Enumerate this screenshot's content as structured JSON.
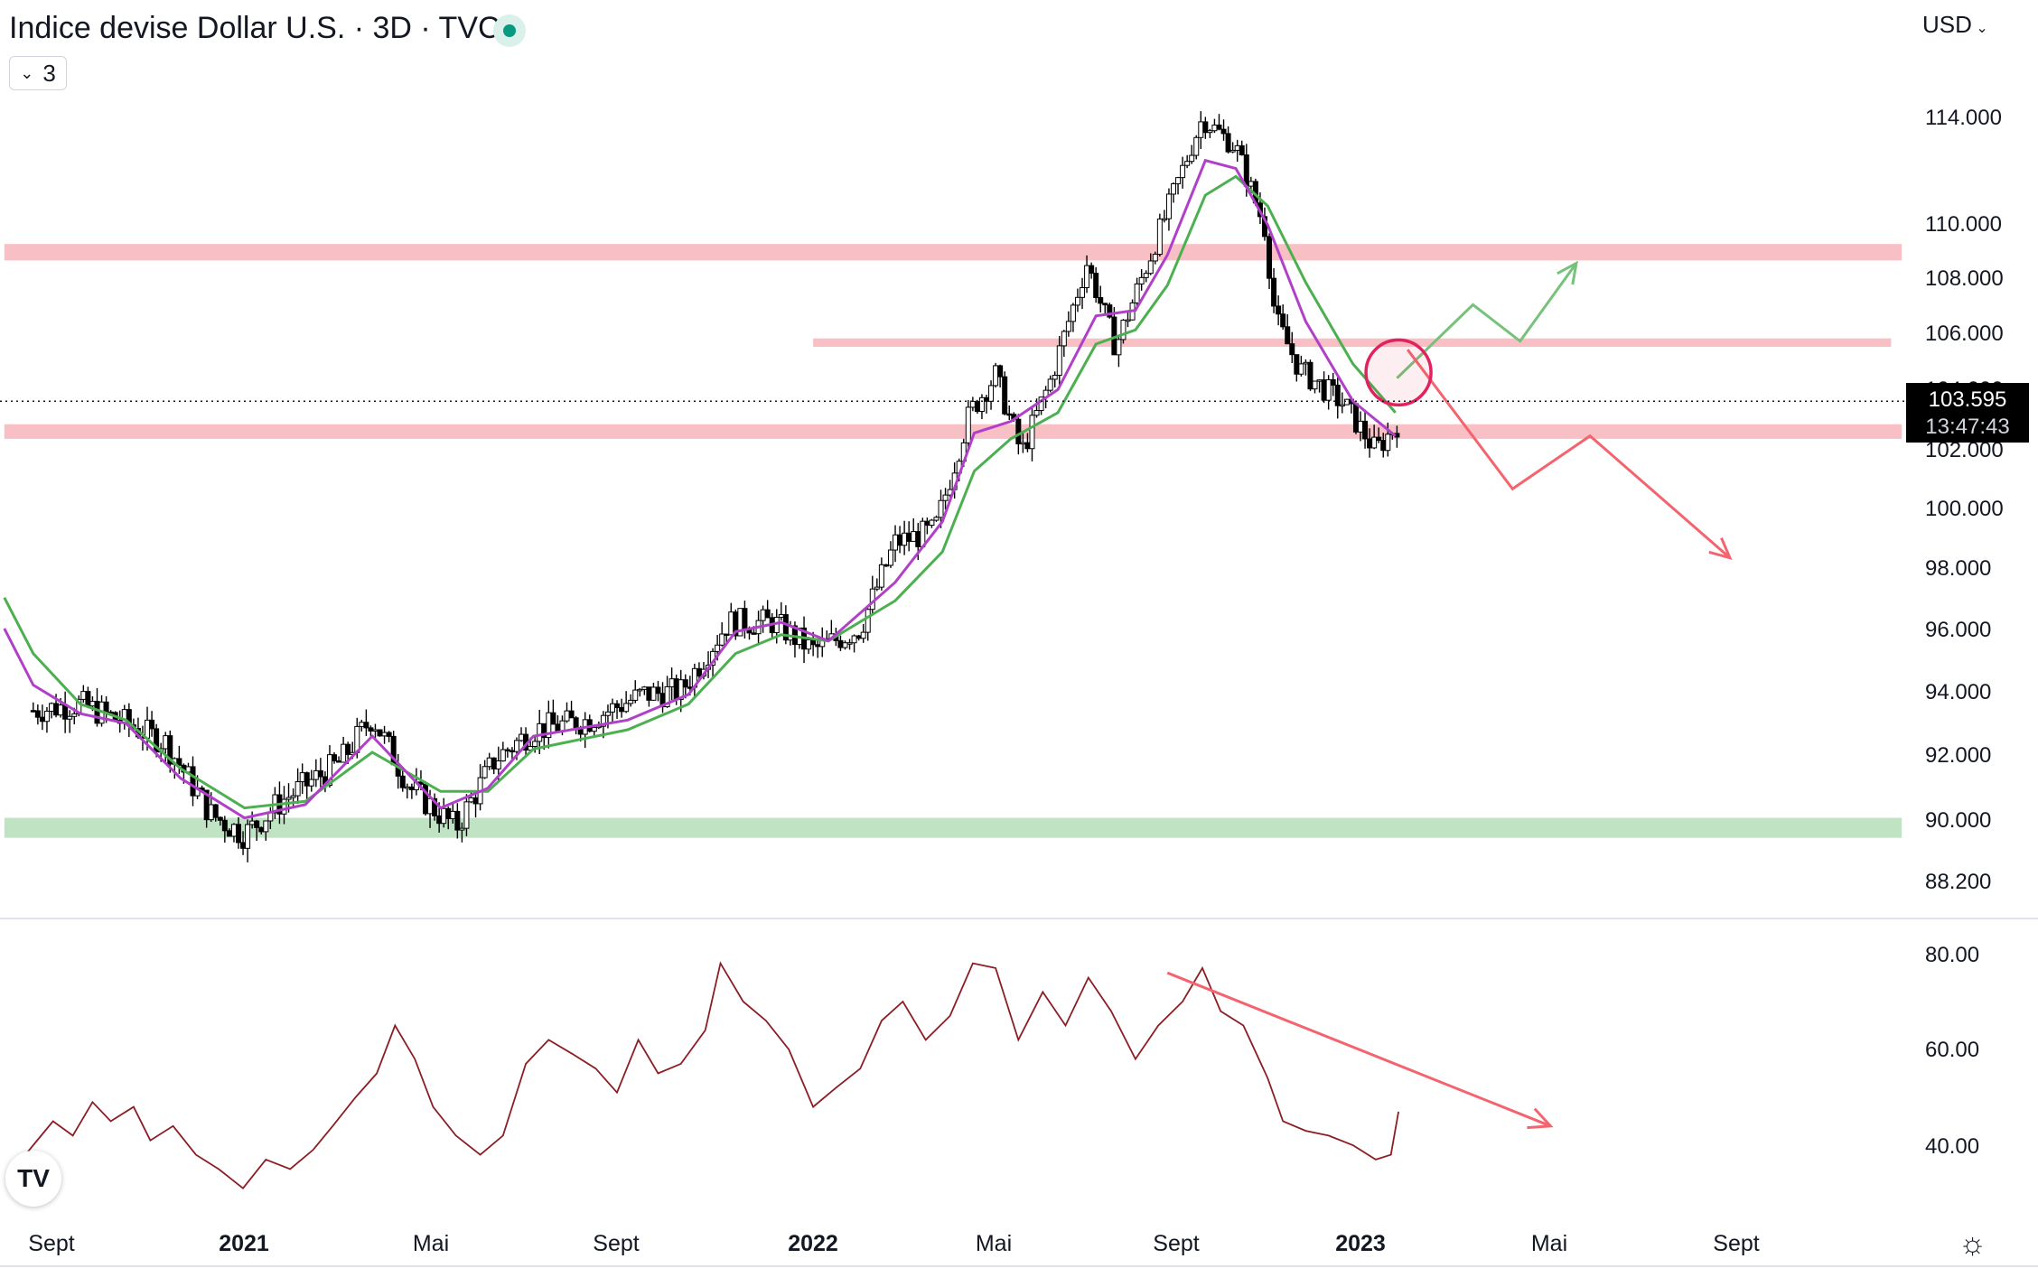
{
  "header": {
    "title": "Indice devise Dollar U.S. · 3D · TVC",
    "indicator_count": "3",
    "currency": "USD"
  },
  "price_label": {
    "price": "103.595",
    "countdown": "13:47:43"
  },
  "logo_text": "TV",
  "chart_data": [
    {
      "type": "candlestick",
      "price_axis_ticks": [
        "114.000",
        "110.000",
        "108.000",
        "106.000",
        "104.000",
        "102.000",
        "100.000",
        "98.000",
        "96.000",
        "94.000",
        "92.000",
        "90.000",
        "88.200"
      ],
      "x_axis_ticks": [
        "Sept",
        "2021",
        "Mai",
        "Sept",
        "2022",
        "Mai",
        "Sept",
        "2023",
        "Mai",
        "Sept"
      ],
      "x_axis_bold": [
        "2021",
        "2022",
        "2023"
      ],
      "ylim": [
        87.8,
        116.0
      ],
      "close_path": [
        [
          "2020-08-20",
          93.4
        ],
        [
          "2020-09-20",
          93.6
        ],
        [
          "2020-10-20",
          93.0
        ],
        [
          "2020-11-15",
          92.4
        ],
        [
          "2020-12-15",
          90.2
        ],
        [
          "2021-01-06",
          89.6
        ],
        [
          "2021-01-30",
          90.6
        ],
        [
          "2021-03-10",
          91.8
        ],
        [
          "2021-03-31",
          93.2
        ],
        [
          "2021-04-25",
          91.0
        ],
        [
          "2021-05-25",
          89.8
        ],
        [
          "2021-06-20",
          91.9
        ],
        [
          "2021-07-15",
          92.8
        ],
        [
          "2021-08-20",
          93.1
        ],
        [
          "2021-09-25",
          93.9
        ],
        [
          "2021-10-20",
          94.0
        ],
        [
          "2021-11-20",
          96.2
        ],
        [
          "2021-12-20",
          96.2
        ],
        [
          "2022-01-15",
          95.3
        ],
        [
          "2022-02-15",
          96.0
        ],
        [
          "2022-03-10",
          98.8
        ],
        [
          "2022-04-05",
          99.2
        ],
        [
          "2022-04-28",
          103.2
        ],
        [
          "2022-05-15",
          104.5
        ],
        [
          "2022-06-01",
          101.8
        ],
        [
          "2022-06-20",
          104.3
        ],
        [
          "2022-07-14",
          108.5
        ],
        [
          "2022-08-02",
          105.5
        ],
        [
          "2022-08-25",
          108.8
        ],
        [
          "2022-09-28",
          113.9
        ],
        [
          "2022-10-20",
          112.8
        ],
        [
          "2022-11-08",
          109.8
        ],
        [
          "2022-11-15",
          106.5
        ],
        [
          "2022-12-01",
          104.7
        ],
        [
          "2022-12-30",
          103.5
        ],
        [
          "2023-01-20",
          101.9
        ],
        [
          "2023-02-03",
          102.8
        ]
      ],
      "ema_fast_path": [
        [
          "2020-08-01",
          96.0
        ],
        [
          "2020-08-20",
          94.2
        ],
        [
          "2020-09-20",
          93.3
        ],
        [
          "2020-10-20",
          93.0
        ],
        [
          "2020-11-25",
          91.3
        ],
        [
          "2021-01-06",
          90.1
        ],
        [
          "2021-02-15",
          90.5
        ],
        [
          "2021-03-31",
          92.6
        ],
        [
          "2021-05-15",
          90.4
        ],
        [
          "2021-06-15",
          91.0
        ],
        [
          "2021-07-15",
          92.6
        ],
        [
          "2021-09-15",
          93.1
        ],
        [
          "2021-10-25",
          93.9
        ],
        [
          "2021-11-25",
          95.9
        ],
        [
          "2021-12-25",
          96.2
        ],
        [
          "2022-01-25",
          95.6
        ],
        [
          "2022-03-10",
          97.5
        ],
        [
          "2022-04-10",
          99.5
        ],
        [
          "2022-05-01",
          102.5
        ],
        [
          "2022-05-25",
          102.9
        ],
        [
          "2022-06-25",
          104.0
        ],
        [
          "2022-07-20",
          106.6
        ],
        [
          "2022-08-15",
          106.8
        ],
        [
          "2022-09-05",
          108.8
        ],
        [
          "2022-09-30",
          112.3
        ],
        [
          "2022-10-20",
          112.0
        ],
        [
          "2022-11-10",
          109.9
        ],
        [
          "2022-12-05",
          106.4
        ],
        [
          "2023-01-05",
          103.6
        ],
        [
          "2023-02-02",
          102.4
        ]
      ],
      "ema_slow_path": [
        [
          "2020-08-01",
          97.0
        ],
        [
          "2020-08-20",
          95.2
        ],
        [
          "2020-09-20",
          93.6
        ],
        [
          "2020-10-20",
          93.1
        ],
        [
          "2020-11-25",
          91.6
        ],
        [
          "2021-01-06",
          90.4
        ],
        [
          "2021-02-15",
          90.6
        ],
        [
          "2021-03-31",
          92.1
        ],
        [
          "2021-05-15",
          90.9
        ],
        [
          "2021-06-15",
          90.9
        ],
        [
          "2021-07-15",
          92.2
        ],
        [
          "2021-09-15",
          92.8
        ],
        [
          "2021-10-25",
          93.6
        ],
        [
          "2021-11-25",
          95.2
        ],
        [
          "2021-12-25",
          95.8
        ],
        [
          "2022-01-25",
          95.6
        ],
        [
          "2022-03-10",
          96.9
        ],
        [
          "2022-04-10",
          98.5
        ],
        [
          "2022-05-01",
          101.2
        ],
        [
          "2022-05-25",
          102.3
        ],
        [
          "2022-06-25",
          103.2
        ],
        [
          "2022-07-20",
          105.6
        ],
        [
          "2022-08-15",
          106.1
        ],
        [
          "2022-09-05",
          107.7
        ],
        [
          "2022-09-30",
          111.0
        ],
        [
          "2022-10-20",
          111.7
        ],
        [
          "2022-11-10",
          110.6
        ],
        [
          "2022-12-05",
          107.8
        ],
        [
          "2023-01-05",
          104.9
        ],
        [
          "2023-02-02",
          103.2
        ]
      ],
      "zones": [
        {
          "kind": "resistance",
          "from": "2020-08-01",
          "to": "2024-01-01",
          "y_range": [
            108.6,
            109.2
          ],
          "color": "#f8bfc4"
        },
        {
          "kind": "resistance",
          "from": "2022-01-15",
          "to": "2023-12-25",
          "y_range": [
            105.5,
            105.8
          ],
          "color": "#f8bfc4"
        },
        {
          "kind": "resistance",
          "from": "2020-08-01",
          "to": "2024-01-01",
          "y_range": [
            102.3,
            102.8
          ],
          "color": "#f8bfc4"
        },
        {
          "kind": "support",
          "from": "2020-08-01",
          "to": "2024-01-01",
          "y_range": [
            89.5,
            90.1
          ],
          "color": "#bfe3c3"
        }
      ],
      "projections": [
        {
          "color": "#77c27a",
          "points": [
            [
              "2023-02-03",
              104.4
            ],
            [
              "2023-03-25",
              107.0
            ],
            [
              "2023-04-25",
              105.7
            ],
            [
              "2023-06-01",
              108.5
            ]
          ]
        },
        {
          "color": "#f4646f",
          "points": [
            [
              "2023-02-10",
              105.4
            ],
            [
              "2023-04-20",
              100.6
            ],
            [
              "2023-06-10",
              102.4
            ],
            [
              "2023-09-10",
              98.3
            ]
          ]
        }
      ],
      "marker_circle": {
        "x": "2023-02-04",
        "y": 104.6,
        "color": "#e2225e"
      },
      "current_price": 103.595
    },
    {
      "type": "line",
      "name": "oscillator",
      "color": "#8b1e24",
      "y_axis_ticks": [
        "80.00",
        "60.00",
        "40.00"
      ],
      "ylim": [
        26,
        84
      ],
      "points": [
        [
          "2020-08-02",
          33
        ],
        [
          "2020-08-20",
          40
        ],
        [
          "2020-09-02",
          45
        ],
        [
          "2020-09-15",
          42
        ],
        [
          "2020-09-28",
          49
        ],
        [
          "2020-10-10",
          45
        ],
        [
          "2020-10-25",
          48
        ],
        [
          "2020-11-05",
          41
        ],
        [
          "2020-11-20",
          44
        ],
        [
          "2020-12-05",
          38
        ],
        [
          "2020-12-20",
          35
        ],
        [
          "2021-01-05",
          31
        ],
        [
          "2021-01-20",
          37
        ],
        [
          "2021-02-05",
          35
        ],
        [
          "2021-02-20",
          39
        ],
        [
          "2021-03-05",
          44
        ],
        [
          "2021-03-20",
          50
        ],
        [
          "2021-04-03",
          55
        ],
        [
          "2021-04-15",
          65
        ],
        [
          "2021-04-28",
          58
        ],
        [
          "2021-05-10",
          48
        ],
        [
          "2021-05-25",
          42
        ],
        [
          "2021-06-10",
          38
        ],
        [
          "2021-06-25",
          42
        ],
        [
          "2021-07-10",
          57
        ],
        [
          "2021-07-25",
          62
        ],
        [
          "2021-08-10",
          59
        ],
        [
          "2021-08-25",
          56
        ],
        [
          "2021-09-08",
          51
        ],
        [
          "2021-09-22",
          62
        ],
        [
          "2021-10-05",
          55
        ],
        [
          "2021-10-20",
          57
        ],
        [
          "2021-11-05",
          64
        ],
        [
          "2021-11-15",
          78
        ],
        [
          "2021-11-30",
          70
        ],
        [
          "2021-12-15",
          66
        ],
        [
          "2021-12-30",
          60
        ],
        [
          "2022-01-15",
          48
        ],
        [
          "2022-01-30",
          52
        ],
        [
          "2022-02-15",
          56
        ],
        [
          "2022-03-01",
          66
        ],
        [
          "2022-03-15",
          70
        ],
        [
          "2022-03-30",
          62
        ],
        [
          "2022-04-15",
          67
        ],
        [
          "2022-04-30",
          78
        ],
        [
          "2022-05-15",
          77
        ],
        [
          "2022-05-30",
          62
        ],
        [
          "2022-06-15",
          72
        ],
        [
          "2022-06-30",
          65
        ],
        [
          "2022-07-15",
          75
        ],
        [
          "2022-07-30",
          68
        ],
        [
          "2022-08-15",
          58
        ],
        [
          "2022-08-30",
          65
        ],
        [
          "2022-09-15",
          70
        ],
        [
          "2022-09-28",
          77
        ],
        [
          "2022-10-10",
          68
        ],
        [
          "2022-10-25",
          65
        ],
        [
          "2022-11-10",
          54
        ],
        [
          "2022-11-20",
          45
        ],
        [
          "2022-12-05",
          43
        ],
        [
          "2022-12-20",
          42
        ],
        [
          "2023-01-05",
          40
        ],
        [
          "2023-01-20",
          37
        ],
        [
          "2023-01-30",
          38
        ],
        [
          "2023-02-04",
          47
        ]
      ],
      "arrow": {
        "color": "#f4646f",
        "from": [
          "2022-09-05",
          76
        ],
        "to": [
          "2023-05-15",
          44
        ]
      }
    }
  ]
}
